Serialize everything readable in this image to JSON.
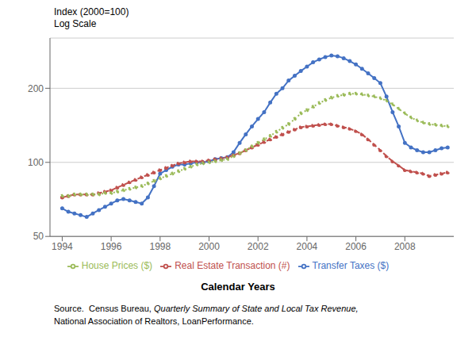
{
  "chart_data": {
    "type": "line",
    "ylabel": "Index (2000=100)",
    "xlabel": "Calendar Years",
    "annotations": [
      "Log Scale",
      "Source.  Census Bureau, ",
      "Quarterly Summary of State and Local Tax Revenue,",
      "National Association of Realtors, LoanPerformance."
    ],
    "x": [
      1994,
      1994.25,
      1994.5,
      1994.75,
      1995,
      1995.25,
      1995.5,
      1995.75,
      1996,
      1996.25,
      1996.5,
      1996.75,
      1997,
      1997.25,
      1997.5,
      1997.75,
      1998,
      1998.25,
      1998.5,
      1998.75,
      1999,
      1999.25,
      1999.5,
      1999.75,
      2000,
      2000.25,
      2000.5,
      2000.75,
      2001,
      2001.25,
      2001.5,
      2001.75,
      2002,
      2002.25,
      2002.5,
      2002.75,
      2003,
      2003.25,
      2003.5,
      2003.75,
      2004,
      2004.25,
      2004.5,
      2004.75,
      2005,
      2005.25,
      2005.5,
      2005.75,
      2006,
      2006.25,
      2006.5,
      2006.75,
      2007,
      2007.25,
      2007.5,
      2007.75,
      2008,
      2008.25,
      2008.5,
      2008.75,
      2009,
      2009.25,
      2009.5,
      2009.75
    ],
    "series": [
      {
        "name": "Transfer Taxes ($)",
        "color": "#4472C4",
        "line_style": "solid",
        "values": [
          65,
          63,
          62,
          61,
          60,
          62,
          64,
          66,
          68,
          70,
          71,
          70,
          69,
          68,
          72,
          80,
          90,
          93,
          96,
          98,
          98,
          99,
          100,
          100,
          101,
          103,
          104,
          105,
          110,
          120,
          130,
          140,
          150,
          160,
          175,
          190,
          200,
          215,
          225,
          235,
          245,
          255,
          262,
          268,
          272,
          270,
          265,
          258,
          250,
          240,
          230,
          220,
          210,
          185,
          160,
          140,
          120,
          115,
          112,
          110,
          110,
          112,
          114,
          115
        ]
      },
      {
        "name": "Real Estate Transaction (#)",
        "color": "#C0504D",
        "line_style": "dashed",
        "values": [
          72,
          73,
          74,
          74,
          74,
          74,
          75,
          76,
          77,
          79,
          81,
          83,
          85,
          87,
          89,
          91,
          93,
          95,
          97,
          99,
          100,
          101,
          101,
          101,
          102,
          103,
          104,
          105,
          107,
          109,
          112,
          115,
          118,
          121,
          124,
          127,
          130,
          133,
          136,
          139,
          140,
          141,
          142,
          143,
          143,
          141,
          139,
          137,
          134,
          130,
          124,
          118,
          112,
          106,
          101,
          97,
          93,
          92,
          91,
          90,
          88,
          89,
          90,
          91
        ]
      },
      {
        "name": "House Prices ($)",
        "color": "#9BBB59",
        "line_style": "dotted",
        "values": [
          73,
          73,
          74,
          74,
          74,
          74,
          74,
          75,
          75,
          76,
          77,
          78,
          79,
          80,
          82,
          84,
          86,
          88,
          90,
          92,
          94,
          96,
          98,
          99,
          100,
          101,
          102,
          103,
          106,
          109,
          112,
          116,
          120,
          124,
          128,
          133,
          138,
          143,
          150,
          158,
          163,
          168,
          174,
          179,
          183,
          186,
          188,
          190,
          190,
          189,
          187,
          185,
          182,
          178,
          172,
          165,
          158,
          152,
          148,
          145,
          143,
          142,
          141,
          140
        ]
      }
    ],
    "marker": "dot",
    "log": "y",
    "ylim": [
      50,
      320
    ],
    "yticks": [
      50,
      100,
      200
    ],
    "xlim": [
      1993.5,
      2010.0
    ],
    "xticks": [
      1994,
      1996,
      1998,
      2000,
      2002,
      2004,
      2006,
      2008
    ],
    "grid": true,
    "legend": "bottom"
  }
}
